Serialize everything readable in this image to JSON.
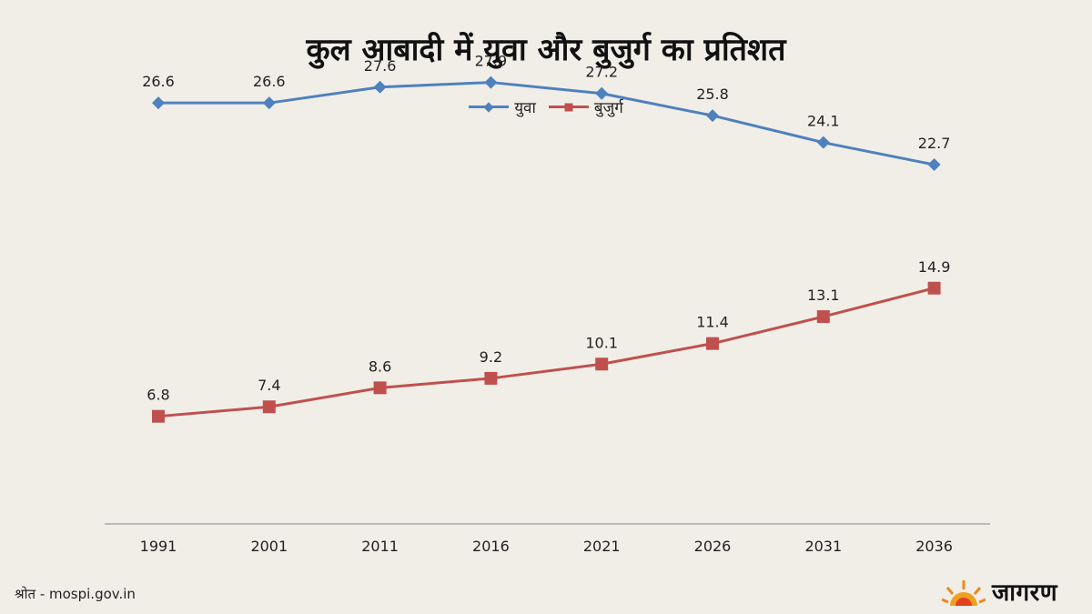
{
  "title": "कुल आबादी में युवा और बुजुर्ग का प्रतिशत",
  "source": "श्रोत - mospi.gov.in",
  "brand": "जागरण",
  "colors": {
    "youth": "#4f81bd",
    "elderly": "#c0504d",
    "axis": "#9a9a9a",
    "background": "#f1eee8"
  },
  "chart_data": {
    "type": "line",
    "title": "कुल आबादी में युवा और बुजुर्ग का प्रतिशत",
    "categories": [
      "1991",
      "2001",
      "2011",
      "2016",
      "2021",
      "2026",
      "2031",
      "2036"
    ],
    "series": [
      {
        "name": "युवा",
        "marker": "diamond",
        "values": [
          26.6,
          26.6,
          27.6,
          27.9,
          27.2,
          25.8,
          24.1,
          22.7
        ]
      },
      {
        "name": "बुजुर्ग",
        "marker": "square",
        "values": [
          6.8,
          7.4,
          8.6,
          9.2,
          10.1,
          11.4,
          13.1,
          14.9
        ]
      }
    ],
    "ylim": [
      0,
      30
    ],
    "grid": false,
    "legend": "top-center",
    "xlabel": "",
    "ylabel": ""
  }
}
